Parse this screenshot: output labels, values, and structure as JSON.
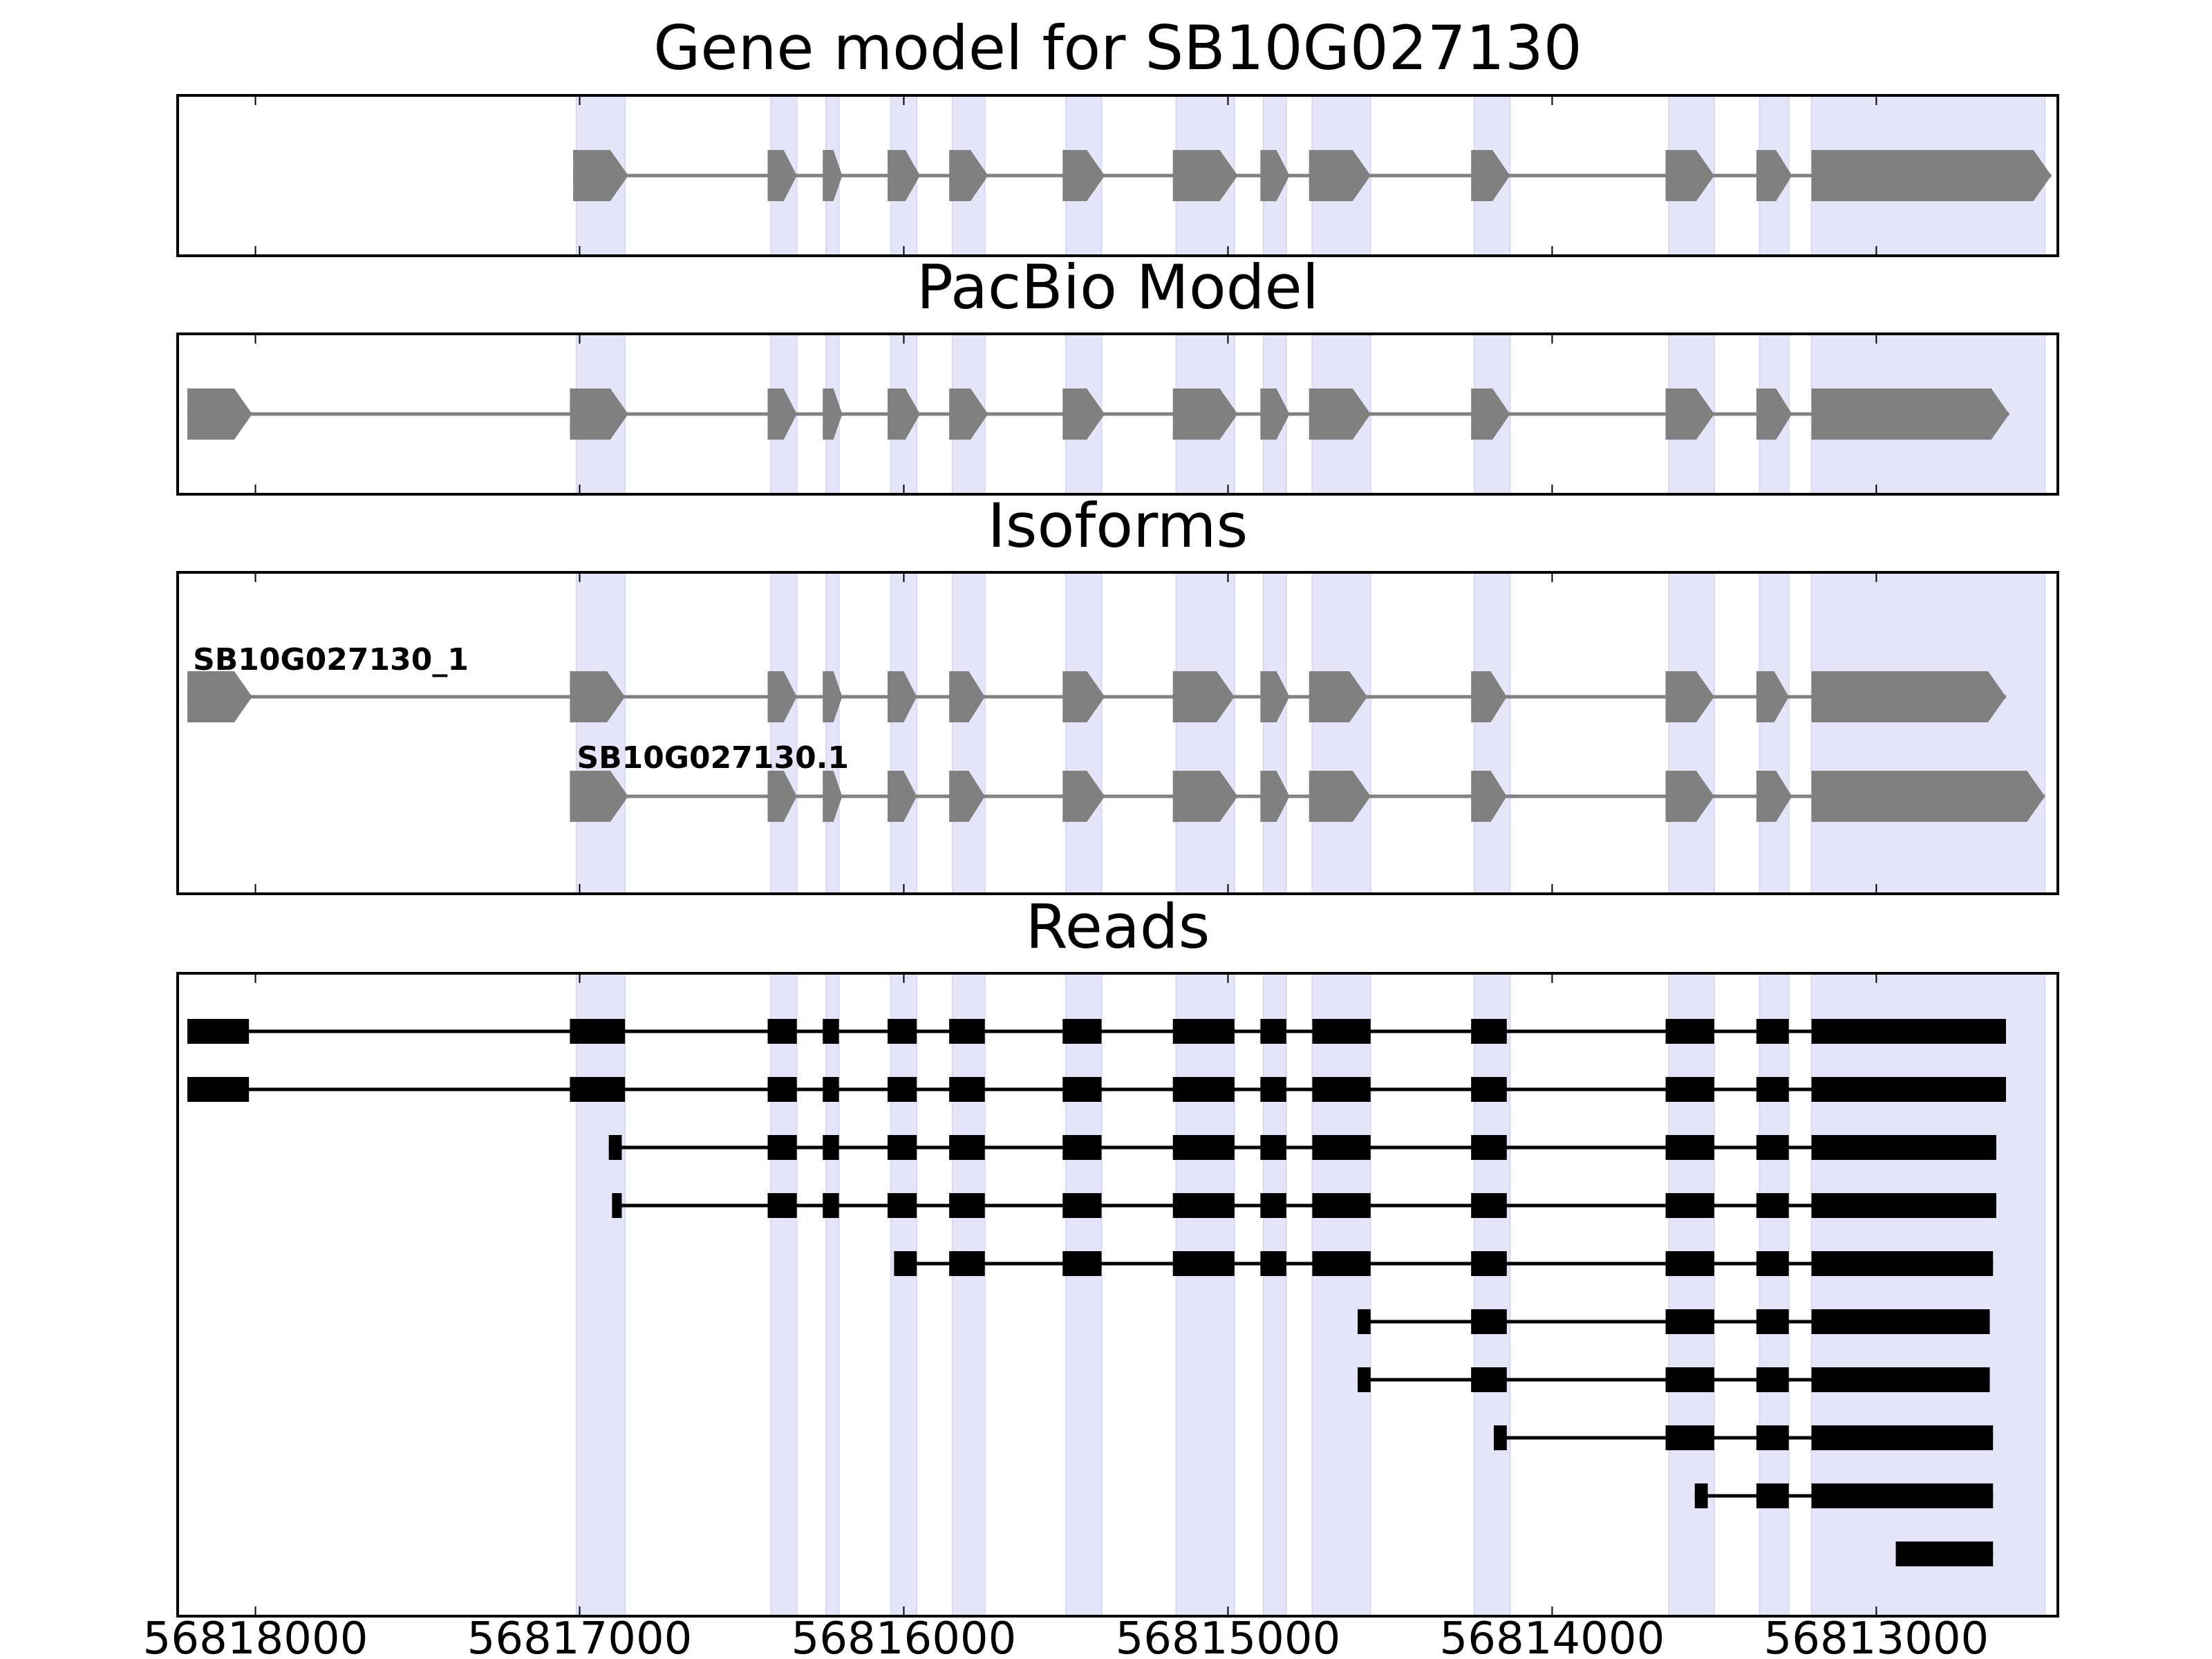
{
  "chart_data": {
    "type": "gene-structure",
    "x_axis": {
      "direction": "reversed",
      "xlim": [
        56818240,
        56812440
      ],
      "ticks": [
        56818000,
        56817000,
        56816000,
        56815000,
        56814000,
        56813000
      ],
      "tick_labels": [
        "56818000",
        "56817000",
        "56816000",
        "56815000",
        "56814000",
        "56813000"
      ]
    },
    "colors": {
      "exon_fill": "#808080",
      "intron_line": "#808080",
      "highlight": "#e5e5fa",
      "read_fill": "#000000"
    },
    "highlight_regions": [
      [
        56817010,
        56816860
      ],
      [
        56816410,
        56816330
      ],
      [
        56816240,
        56816200
      ],
      [
        56816040,
        56815960
      ],
      [
        56815850,
        56815750
      ],
      [
        56815500,
        56815390
      ],
      [
        56815160,
        56814980
      ],
      [
        56814890,
        56814820
      ],
      [
        56814740,
        56814560
      ],
      [
        56814240,
        56814130
      ],
      [
        56813640,
        56813500
      ],
      [
        56813360,
        56813270
      ],
      [
        56813200,
        56812480
      ]
    ],
    "panels": [
      {
        "title": "Gene model for SB10G027130",
        "tracks": [
          {
            "label": "",
            "exons": [
              [
                56817020,
                56816850
              ],
              [
                56816420,
                56816330
              ],
              [
                56816250,
                56816190
              ],
              [
                56816050,
                56815950
              ],
              [
                56815860,
                56815740
              ],
              [
                56815510,
                56815380
              ],
              [
                56815170,
                56814970
              ],
              [
                56814900,
                56814810
              ],
              [
                56814750,
                56814560
              ],
              [
                56814250,
                56814130
              ],
              [
                56813650,
                56813500
              ],
              [
                56813370,
                56813260
              ],
              [
                56813200,
                56812460
              ]
            ]
          }
        ]
      },
      {
        "title": "PacBio Model",
        "tracks": [
          {
            "label": "",
            "exons": [
              [
                56818210,
                56818010
              ],
              [
                56817030,
                56816850
              ],
              [
                56816420,
                56816330
              ],
              [
                56816250,
                56816190
              ],
              [
                56816050,
                56815950
              ],
              [
                56815860,
                56815740
              ],
              [
                56815510,
                56815380
              ],
              [
                56815170,
                56814970
              ],
              [
                56814900,
                56814810
              ],
              [
                56814750,
                56814560
              ],
              [
                56814250,
                56814130
              ],
              [
                56813650,
                56813500
              ],
              [
                56813370,
                56813260
              ],
              [
                56813200,
                56812590
              ]
            ]
          }
        ]
      },
      {
        "title": "Isoforms",
        "tracks": [
          {
            "label": "SB10G027130_1",
            "exons": [
              [
                56818210,
                56818010
              ],
              [
                56817030,
                56816860
              ],
              [
                56816420,
                56816330
              ],
              [
                56816250,
                56816190
              ],
              [
                56816050,
                56815960
              ],
              [
                56815860,
                56815750
              ],
              [
                56815510,
                56815380
              ],
              [
                56815170,
                56814980
              ],
              [
                56814900,
                56814810
              ],
              [
                56814750,
                56814570
              ],
              [
                56814250,
                56814140
              ],
              [
                56813650,
                56813500
              ],
              [
                56813370,
                56813270
              ],
              [
                56813200,
                56812600
              ]
            ]
          },
          {
            "label": "SB10G027130.1",
            "exons": [
              [
                56817030,
                56816850
              ],
              [
                56816420,
                56816330
              ],
              [
                56816250,
                56816190
              ],
              [
                56816050,
                56815960
              ],
              [
                56815860,
                56815750
              ],
              [
                56815510,
                56815380
              ],
              [
                56815170,
                56814970
              ],
              [
                56814900,
                56814810
              ],
              [
                56814750,
                56814560
              ],
              [
                56814250,
                56814140
              ],
              [
                56813650,
                56813500
              ],
              [
                56813370,
                56813260
              ],
              [
                56813200,
                56812480
              ]
            ]
          }
        ]
      },
      {
        "title": "Reads",
        "style": "reads",
        "tracks": [
          {
            "label": "",
            "exons": [
              [
                56818210,
                56818020
              ],
              [
                56817030,
                56816860
              ],
              [
                56816420,
                56816330
              ],
              [
                56816250,
                56816200
              ],
              [
                56816050,
                56815960
              ],
              [
                56815860,
                56815750
              ],
              [
                56815510,
                56815390
              ],
              [
                56815170,
                56814980
              ],
              [
                56814900,
                56814820
              ],
              [
                56814740,
                56814560
              ],
              [
                56814250,
                56814140
              ],
              [
                56813650,
                56813500
              ],
              [
                56813370,
                56813270
              ],
              [
                56813200,
                56812600
              ]
            ]
          },
          {
            "label": "",
            "exons": [
              [
                56818210,
                56818020
              ],
              [
                56817030,
                56816860
              ],
              [
                56816420,
                56816330
              ],
              [
                56816250,
                56816200
              ],
              [
                56816050,
                56815960
              ],
              [
                56815860,
                56815750
              ],
              [
                56815510,
                56815390
              ],
              [
                56815170,
                56814980
              ],
              [
                56814900,
                56814820
              ],
              [
                56814740,
                56814560
              ],
              [
                56814250,
                56814140
              ],
              [
                56813650,
                56813500
              ],
              [
                56813370,
                56813270
              ],
              [
                56813200,
                56812600
              ]
            ]
          },
          {
            "label": "",
            "exons": [
              [
                56816910,
                56816870
              ],
              [
                56816420,
                56816330
              ],
              [
                56816250,
                56816200
              ],
              [
                56816050,
                56815960
              ],
              [
                56815860,
                56815750
              ],
              [
                56815510,
                56815390
              ],
              [
                56815170,
                56814980
              ],
              [
                56814900,
                56814820
              ],
              [
                56814740,
                56814560
              ],
              [
                56814250,
                56814140
              ],
              [
                56813650,
                56813500
              ],
              [
                56813370,
                56813270
              ],
              [
                56813200,
                56812630
              ]
            ]
          },
          {
            "label": "",
            "exons": [
              [
                56816900,
                56816870
              ],
              [
                56816420,
                56816330
              ],
              [
                56816250,
                56816200
              ],
              [
                56816050,
                56815960
              ],
              [
                56815860,
                56815750
              ],
              [
                56815510,
                56815390
              ],
              [
                56815170,
                56814980
              ],
              [
                56814900,
                56814820
              ],
              [
                56814740,
                56814560
              ],
              [
                56814250,
                56814140
              ],
              [
                56813650,
                56813500
              ],
              [
                56813370,
                56813270
              ],
              [
                56813200,
                56812630
              ]
            ]
          },
          {
            "label": "",
            "exons": [
              [
                56816030,
                56815960
              ],
              [
                56815860,
                56815750
              ],
              [
                56815510,
                56815390
              ],
              [
                56815170,
                56814980
              ],
              [
                56814900,
                56814820
              ],
              [
                56814740,
                56814560
              ],
              [
                56814250,
                56814140
              ],
              [
                56813650,
                56813500
              ],
              [
                56813370,
                56813270
              ],
              [
                56813200,
                56812640
              ]
            ]
          },
          {
            "label": "",
            "exons": [
              [
                56814600,
                56814560
              ],
              [
                56814250,
                56814140
              ],
              [
                56813650,
                56813500
              ],
              [
                56813370,
                56813270
              ],
              [
                56813200,
                56812650
              ]
            ]
          },
          {
            "label": "",
            "exons": [
              [
                56814600,
                56814560
              ],
              [
                56814250,
                56814140
              ],
              [
                56813650,
                56813500
              ],
              [
                56813370,
                56813270
              ],
              [
                56813200,
                56812650
              ]
            ]
          },
          {
            "label": "",
            "exons": [
              [
                56814180,
                56814140
              ],
              [
                56813650,
                56813500
              ],
              [
                56813370,
                56813270
              ],
              [
                56813200,
                56812640
              ]
            ]
          },
          {
            "label": "",
            "exons": [
              [
                56813560,
                56813520
              ],
              [
                56813370,
                56813270
              ],
              [
                56813200,
                56812640
              ]
            ]
          },
          {
            "label": "",
            "exons": [
              [
                56812940,
                56812640
              ]
            ]
          }
        ]
      }
    ]
  }
}
